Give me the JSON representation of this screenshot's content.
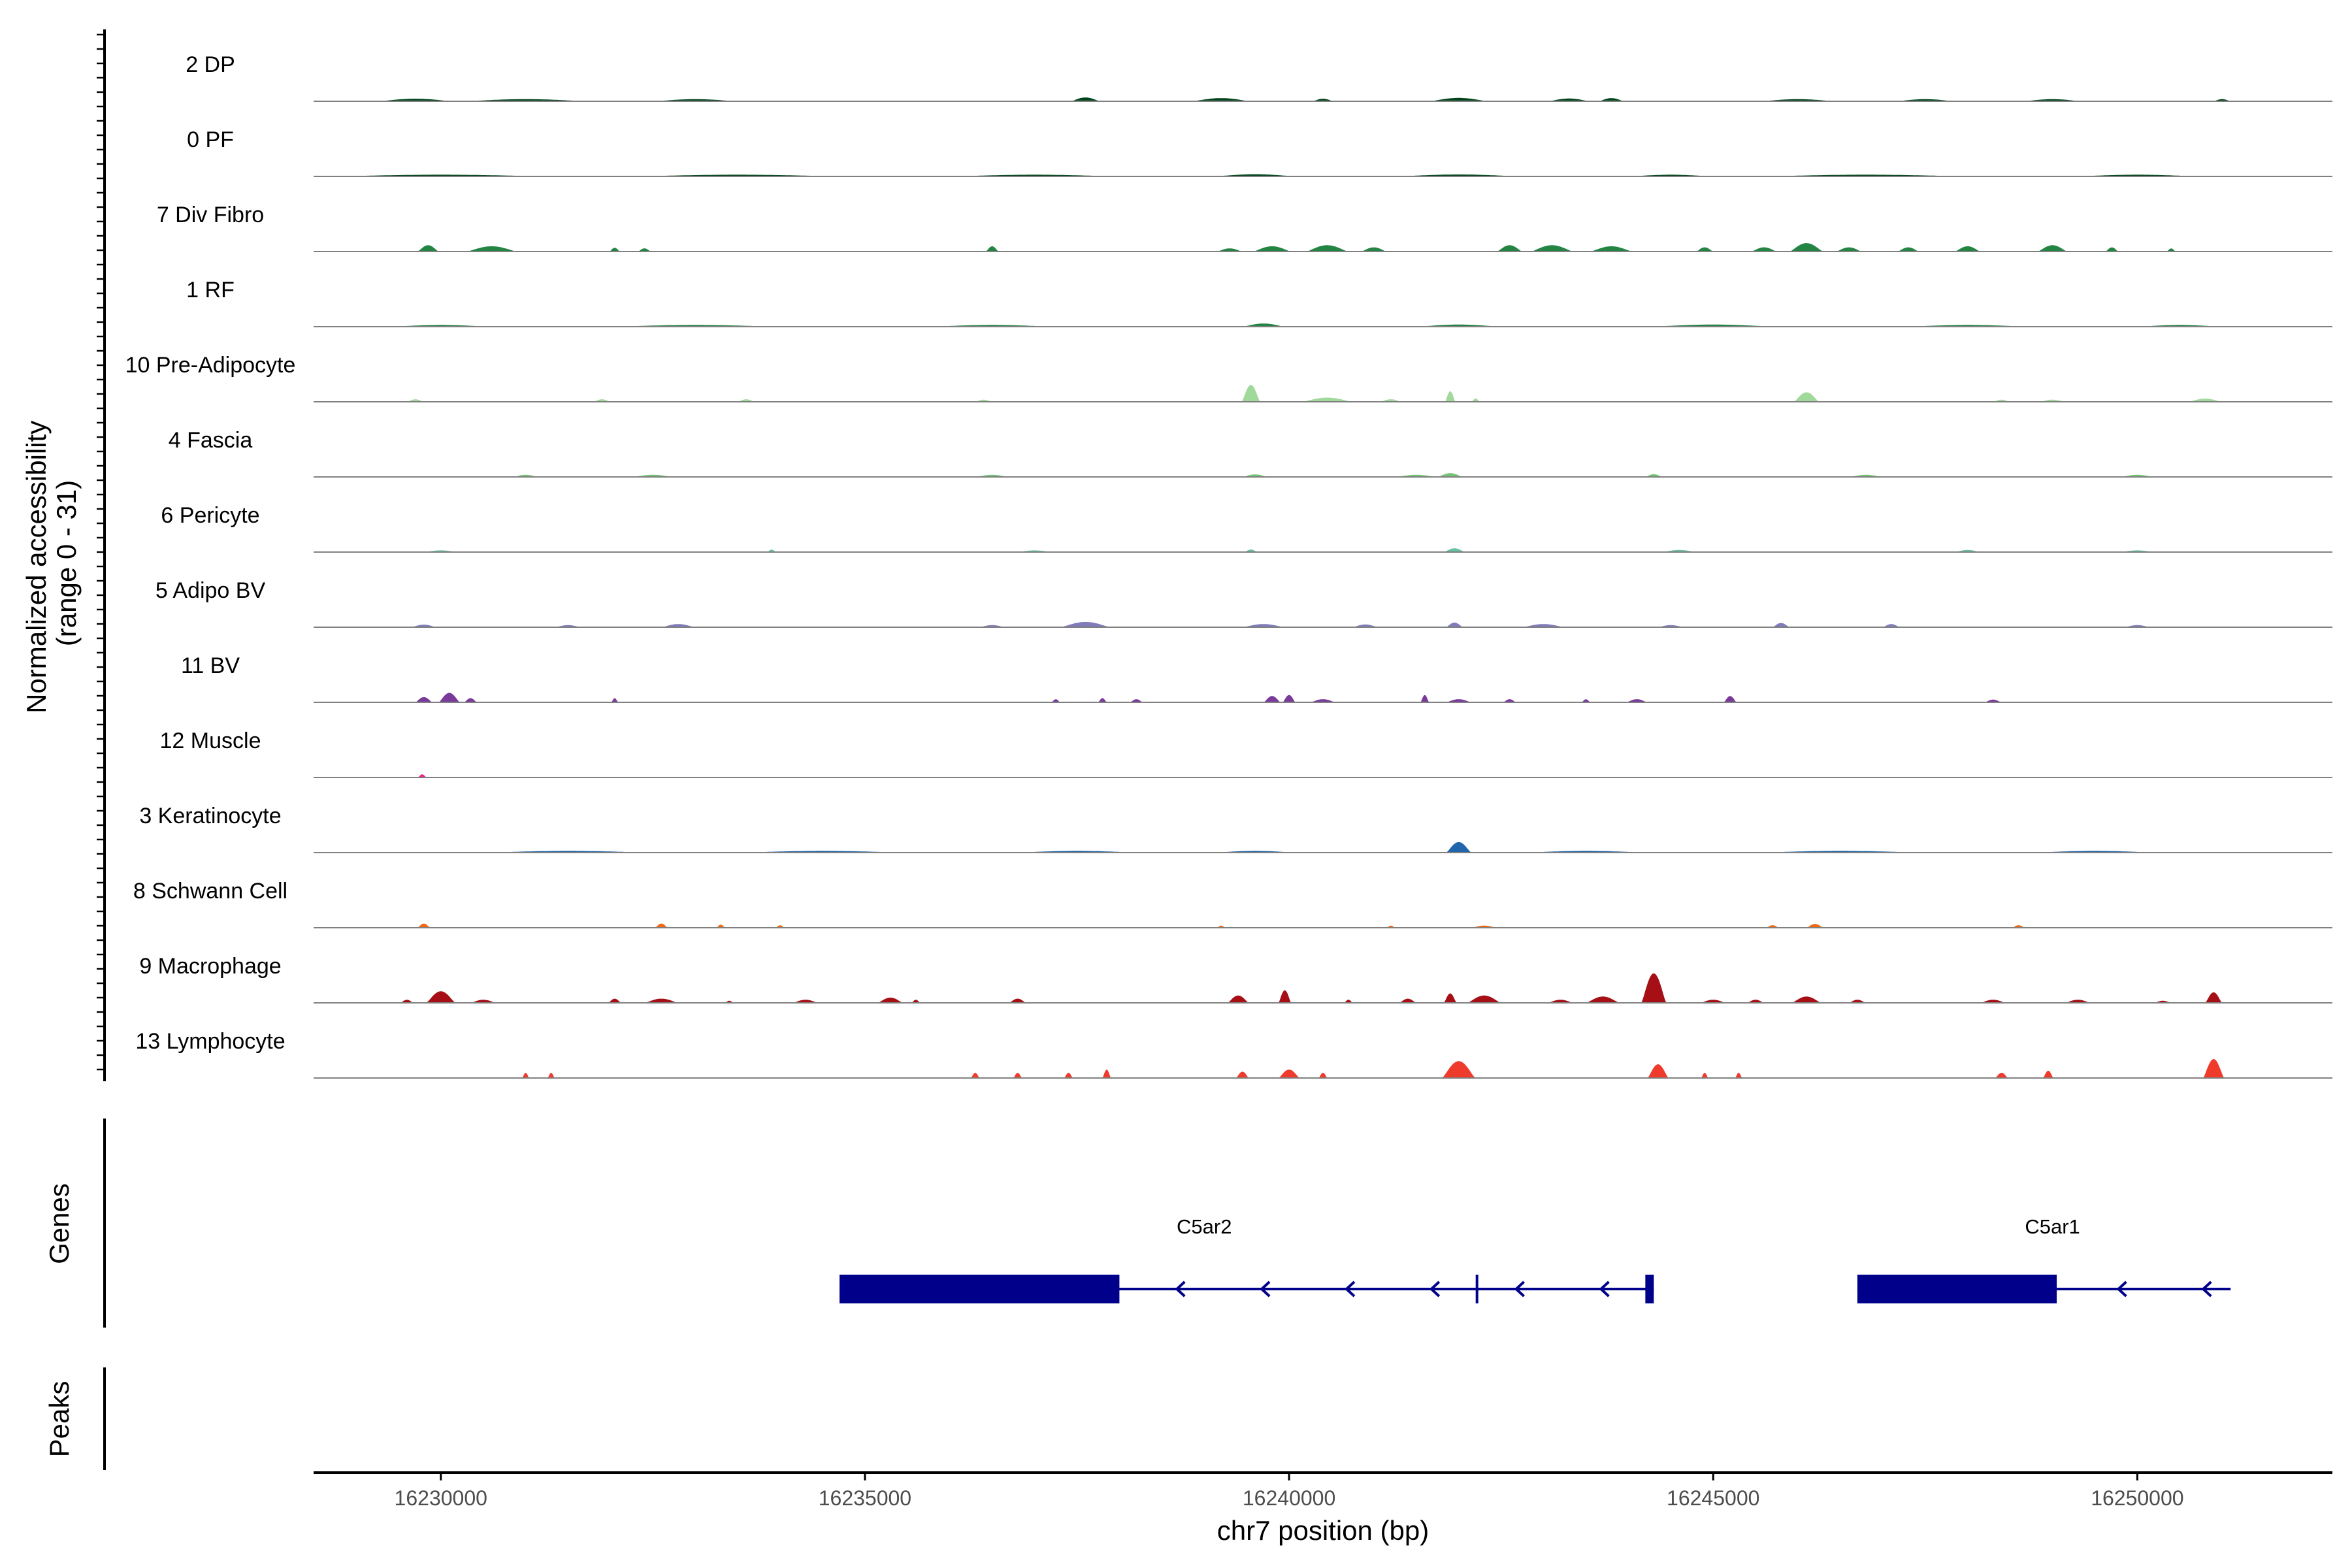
{
  "chart_data": {
    "type": "area",
    "title": "",
    "ylabel": "Normalized accessibility\n(range 0 - 31)",
    "y_range": [
      0,
      31
    ],
    "xlabel": "chr7 position (bp)",
    "xlim": [
      16228500,
      16252300
    ],
    "x_ticks": [
      16230000,
      16235000,
      16240000,
      16245000,
      16250000
    ],
    "x_tick_labels": [
      "16230000",
      "16235000",
      "16240000",
      "16245000",
      "16250000"
    ],
    "panel_labels": {
      "genes": "Genes",
      "peaks": "Peaks"
    },
    "series": [
      {
        "name": "2 DP",
        "color": "#00441b",
        "peaks": [
          [
            16229700,
            1.2,
            900
          ],
          [
            16231000,
            1,
            1500
          ],
          [
            16233000,
            1,
            1000
          ],
          [
            16237600,
            1.8,
            350
          ],
          [
            16239200,
            1.5,
            700
          ],
          [
            16240400,
            1.2,
            250
          ],
          [
            16242000,
            1.6,
            700
          ],
          [
            16243300,
            1.3,
            500
          ],
          [
            16243800,
            1.5,
            300
          ],
          [
            16246000,
            1,
            900
          ],
          [
            16247500,
            1,
            700
          ],
          [
            16249000,
            1,
            700
          ],
          [
            16251000,
            1,
            200
          ]
        ]
      },
      {
        "name": "0 PF",
        "color": "#00441b",
        "peaks": [
          [
            16230000,
            0.8,
            2600
          ],
          [
            16233500,
            0.8,
            2500
          ],
          [
            16237000,
            0.8,
            2000
          ],
          [
            16239600,
            1,
            1000
          ],
          [
            16242000,
            0.9,
            1500
          ],
          [
            16244500,
            0.8,
            1000
          ],
          [
            16246800,
            0.8,
            2500
          ],
          [
            16250000,
            0.8,
            1500
          ]
        ]
      },
      {
        "name": "7 Div Fibro",
        "color": "#238443",
        "peaks": [
          [
            16229850,
            3,
            250
          ],
          [
            16230600,
            2.5,
            600
          ],
          [
            16232050,
            1.8,
            120
          ],
          [
            16232400,
            1.5,
            150
          ],
          [
            16236500,
            2.5,
            150
          ],
          [
            16239300,
            1.5,
            300
          ],
          [
            16239800,
            2.5,
            450
          ],
          [
            16240450,
            3,
            500
          ],
          [
            16241000,
            2,
            300
          ],
          [
            16242600,
            3,
            300
          ],
          [
            16243100,
            3,
            500
          ],
          [
            16243800,
            2.5,
            500
          ],
          [
            16244900,
            2,
            200
          ],
          [
            16245600,
            2,
            300
          ],
          [
            16246100,
            4,
            400
          ],
          [
            16246600,
            2,
            300
          ],
          [
            16247300,
            2,
            250
          ],
          [
            16248000,
            2.5,
            300
          ],
          [
            16249000,
            3,
            350
          ],
          [
            16249700,
            2,
            150
          ],
          [
            16250400,
            1.5,
            100
          ]
        ]
      },
      {
        "name": "1 RF",
        "color": "#238443",
        "peaks": [
          [
            16230000,
            0.8,
            1200
          ],
          [
            16233000,
            0.8,
            2000
          ],
          [
            16236500,
            0.8,
            1500
          ],
          [
            16239700,
            1.5,
            500
          ],
          [
            16242000,
            1,
            1000
          ],
          [
            16245000,
            1,
            1500
          ],
          [
            16248000,
            0.8,
            1500
          ],
          [
            16250500,
            0.8,
            1000
          ]
        ]
      },
      {
        "name": "10 Pre-Adipocyte",
        "color": "#a1d99b",
        "peaks": [
          [
            16229700,
            1.2,
            200
          ],
          [
            16231900,
            1.2,
            200
          ],
          [
            16233600,
            1.2,
            200
          ],
          [
            16236400,
            1,
            200
          ],
          [
            16239550,
            8,
            220
          ],
          [
            16240450,
            2,
            600
          ],
          [
            16241200,
            1.2,
            250
          ],
          [
            16241900,
            5,
            120
          ],
          [
            16242200,
            1.5,
            100
          ],
          [
            16246100,
            4.5,
            300
          ],
          [
            16248400,
            1,
            200
          ],
          [
            16249000,
            1,
            300
          ],
          [
            16250800,
            1.5,
            400
          ]
        ]
      },
      {
        "name": "4 Fascia",
        "color": "#74c476",
        "peaks": [
          [
            16231000,
            1,
            300
          ],
          [
            16232500,
            1,
            500
          ],
          [
            16236500,
            1,
            400
          ],
          [
            16239600,
            1.2,
            300
          ],
          [
            16241500,
            1,
            500
          ],
          [
            16241900,
            1.8,
            300
          ],
          [
            16244300,
            1.3,
            200
          ],
          [
            16246800,
            1,
            400
          ],
          [
            16250000,
            1,
            400
          ]
        ]
      },
      {
        "name": "6 Pericyte",
        "color": "#66c2a4",
        "peaks": [
          [
            16230000,
            0.8,
            400
          ],
          [
            16233900,
            1.2,
            100
          ],
          [
            16237000,
            0.8,
            400
          ],
          [
            16239550,
            1.2,
            150
          ],
          [
            16241950,
            1.8,
            250
          ],
          [
            16244600,
            1,
            400
          ],
          [
            16248000,
            1,
            300
          ],
          [
            16250000,
            0.8,
            400
          ]
        ]
      },
      {
        "name": "5 Adipo BV",
        "color": "#807dba",
        "peaks": [
          [
            16229800,
            1.2,
            300
          ],
          [
            16231500,
            1,
            300
          ],
          [
            16232800,
            1.5,
            400
          ],
          [
            16236500,
            1,
            300
          ],
          [
            16237600,
            2.5,
            600
          ],
          [
            16239700,
            1.5,
            500
          ],
          [
            16240900,
            1.3,
            300
          ],
          [
            16241950,
            2.2,
            200
          ],
          [
            16243000,
            1.5,
            500
          ],
          [
            16244500,
            1,
            300
          ],
          [
            16245800,
            2,
            200
          ],
          [
            16247100,
            1.5,
            200
          ],
          [
            16250000,
            1,
            300
          ]
        ]
      },
      {
        "name": "11 BV",
        "color": "#7a3a9a",
        "peaks": [
          [
            16229800,
            2.5,
            200
          ],
          [
            16230100,
            4.5,
            250
          ],
          [
            16230350,
            2,
            150
          ],
          [
            16232050,
            2,
            80
          ],
          [
            16237250,
            1.5,
            100
          ],
          [
            16237800,
            2,
            100
          ],
          [
            16238200,
            1.5,
            150
          ],
          [
            16239800,
            3,
            200
          ],
          [
            16240000,
            3.5,
            150
          ],
          [
            16240400,
            1.5,
            300
          ],
          [
            16241600,
            3.5,
            100
          ],
          [
            16242000,
            1.5,
            300
          ],
          [
            16242600,
            1.5,
            150
          ],
          [
            16243500,
            1.5,
            100
          ],
          [
            16244100,
            1.5,
            250
          ],
          [
            16245200,
            3,
            150
          ],
          [
            16248300,
            1.3,
            200
          ]
        ]
      },
      {
        "name": "12 Muscle",
        "color": "#e7298a",
        "peaks": [
          [
            16229780,
            1.5,
            100
          ]
        ]
      },
      {
        "name": "3 Keratinocyte",
        "color": "#2166ac",
        "peaks": [
          [
            16231500,
            0.8,
            2000
          ],
          [
            16234500,
            0.8,
            2000
          ],
          [
            16237500,
            0.8,
            1500
          ],
          [
            16239600,
            0.8,
            1000
          ],
          [
            16242000,
            5,
            300
          ],
          [
            16243500,
            0.8,
            1500
          ],
          [
            16246500,
            0.8,
            2000
          ],
          [
            16249500,
            0.8,
            1500
          ]
        ]
      },
      {
        "name": "8 Schwann Cell",
        "color": "#f16913",
        "peaks": [
          [
            16229800,
            2,
            150
          ],
          [
            16232600,
            2,
            150
          ],
          [
            16233300,
            1.5,
            100
          ],
          [
            16234000,
            1.2,
            100
          ],
          [
            16239200,
            1,
            100
          ],
          [
            16241200,
            1,
            100
          ],
          [
            16242300,
            1,
            300
          ],
          [
            16245700,
            1.2,
            150
          ],
          [
            16246200,
            1.8,
            200
          ],
          [
            16248600,
            1.2,
            150
          ]
        ]
      },
      {
        "name": "9 Macrophage",
        "color": "#a50f15",
        "peaks": [
          [
            16229600,
            1.5,
            150
          ],
          [
            16230000,
            5.5,
            350
          ],
          [
            16230500,
            1.5,
            300
          ],
          [
            16232050,
            2,
            150
          ],
          [
            16232600,
            2,
            400
          ],
          [
            16233400,
            1,
            100
          ],
          [
            16234300,
            1.5,
            300
          ],
          [
            16235300,
            2.5,
            300
          ],
          [
            16235600,
            1.5,
            100
          ],
          [
            16236800,
            2,
            200
          ],
          [
            16239400,
            3.5,
            250
          ],
          [
            16239950,
            6,
            150
          ],
          [
            16240700,
            1.5,
            100
          ],
          [
            16241400,
            2,
            200
          ],
          [
            16241900,
            4.5,
            150
          ],
          [
            16242300,
            3.5,
            400
          ],
          [
            16243200,
            1.5,
            300
          ],
          [
            16243700,
            3,
            400
          ],
          [
            16244300,
            14,
            300
          ],
          [
            16245000,
            1.5,
            300
          ],
          [
            16245500,
            1.5,
            200
          ],
          [
            16246100,
            3,
            350
          ],
          [
            16246700,
            1.5,
            200
          ],
          [
            16248300,
            1.5,
            300
          ],
          [
            16249300,
            1.5,
            300
          ],
          [
            16250300,
            1,
            200
          ],
          [
            16250900,
            5,
            200
          ]
        ]
      },
      {
        "name": "13 Lymphocyte",
        "color": "#ef3b2c",
        "peaks": [
          [
            16231000,
            2.5,
            80
          ],
          [
            16231300,
            2.5,
            80
          ],
          [
            16236300,
            2.5,
            100
          ],
          [
            16236800,
            2.5,
            100
          ],
          [
            16237400,
            2.5,
            100
          ],
          [
            16237850,
            4,
            100
          ],
          [
            16239450,
            3,
            150
          ],
          [
            16240000,
            4,
            250
          ],
          [
            16240400,
            2.5,
            100
          ],
          [
            16242000,
            8,
            400
          ],
          [
            16244350,
            6.5,
            250
          ],
          [
            16244900,
            2.5,
            80
          ],
          [
            16245300,
            2.5,
            80
          ],
          [
            16248400,
            2.5,
            150
          ],
          [
            16248950,
            3.5,
            120
          ],
          [
            16250900,
            9,
            250
          ]
        ]
      }
    ],
    "genes": [
      {
        "name": "C5ar2",
        "strand": "-",
        "start": 16234700,
        "end": 16244300,
        "thick_start": 16234700,
        "thick_end": 16238000,
        "label_x": 16239000,
        "exon_marks": [
          [
            16244200,
            16244300
          ],
          [
            16242200,
            16242220
          ]
        ],
        "arrows": [
          16238700,
          16239700,
          16240700,
          16241700,
          16242700,
          16243700
        ]
      },
      {
        "name": "C5ar1",
        "strand": "-",
        "start": 16246700,
        "end": 16251100,
        "thick_start": 16246700,
        "thick_end": 16249050,
        "label_x": 16249000,
        "exon_marks": [],
        "arrows": [
          16249800,
          16250800
        ]
      }
    ],
    "gene_color": "#00008b",
    "baseline_color": "#808080",
    "grid": false,
    "legend": "none"
  }
}
